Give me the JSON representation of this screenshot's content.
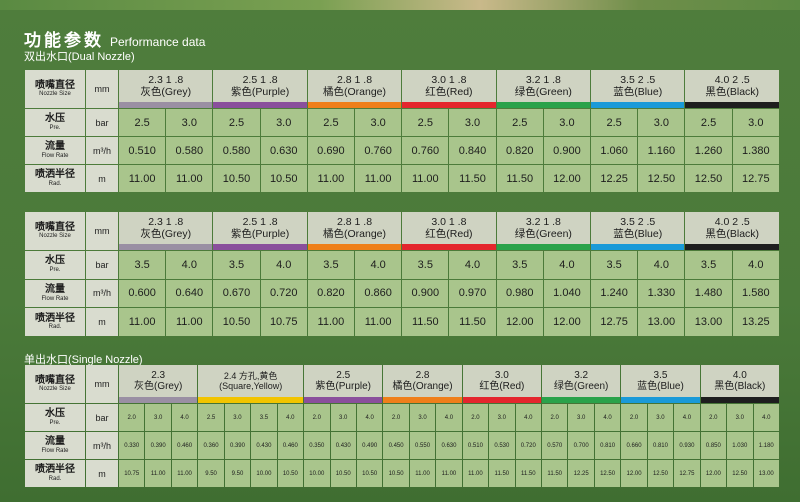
{
  "header": {
    "title_zh": "功能参数",
    "title_en": "Performance data"
  },
  "dual": {
    "label": "双出水口(Dual Nozzle)",
    "row_labels": {
      "size_zh": "喷嘴直径",
      "size_en": "Nozzle Size",
      "size_unit": "mm",
      "pressure_zh": "水压",
      "pressure_en": "Pre.",
      "pressure_unit": "bar",
      "flow_zh": "流量",
      "flow_en": "Flow Rate",
      "flow_unit": "m³/h",
      "radius_zh": "喷洒半径",
      "radius_en": "Rad.",
      "radius_unit": "m"
    },
    "tables": [
      {
        "nozzles": [
          {
            "size": "2.3 1 .8",
            "color": "灰色(Grey)",
            "hex": "#9a8fa3"
          },
          {
            "size": "2.5 1 .8",
            "color": "紫色(Purple)",
            "hex": "#8a4f9c"
          },
          {
            "size": "2.8 1 .8",
            "color": "橘色(Orange)",
            "hex": "#ef7f1a"
          },
          {
            "size": "3.0 1 .8",
            "color": "红色(Red)",
            "hex": "#e4262d"
          },
          {
            "size": "3.2 1 .8",
            "color": "绿色(Green)",
            "hex": "#2aa24a"
          },
          {
            "size": "3.5 2 .5",
            "color": "蓝色(Blue)",
            "hex": "#1a9ad8"
          },
          {
            "size": "4.0 2 .5",
            "color": "黑色(Black)",
            "hex": "#1e1e1e"
          }
        ],
        "pressure": [
          "2.5",
          "3.0",
          "2.5",
          "3.0",
          "2.5",
          "3.0",
          "2.5",
          "3.0",
          "2.5",
          "3.0",
          "2.5",
          "3.0",
          "2.5",
          "3.0"
        ],
        "flow": [
          "0.510",
          "0.580",
          "0.580",
          "0.630",
          "0.690",
          "0.760",
          "0.760",
          "0.840",
          "0.820",
          "0.900",
          "1.060",
          "1.160",
          "1.260",
          "1.380"
        ],
        "radius": [
          "11.00",
          "11.00",
          "10.50",
          "10.50",
          "11.00",
          "11.00",
          "11.00",
          "11.50",
          "11.50",
          "12.00",
          "12.25",
          "12.50",
          "12.50",
          "12.75"
        ]
      },
      {
        "nozzles": [
          {
            "size": "2.3 1 .8",
            "color": "灰色(Grey)",
            "hex": "#9a8fa3"
          },
          {
            "size": "2.5 1 .8",
            "color": "紫色(Purple)",
            "hex": "#8a4f9c"
          },
          {
            "size": "2.8 1 .8",
            "color": "橘色(Orange)",
            "hex": "#ef7f1a"
          },
          {
            "size": "3.0 1 .8",
            "color": "红色(Red)",
            "hex": "#e4262d"
          },
          {
            "size": "3.2 1 .8",
            "color": "绿色(Green)",
            "hex": "#2aa24a"
          },
          {
            "size": "3.5 2 .5",
            "color": "蓝色(Blue)",
            "hex": "#1a9ad8"
          },
          {
            "size": "4.0 2 .5",
            "color": "黑色(Black)",
            "hex": "#1e1e1e"
          }
        ],
        "pressure": [
          "3.5",
          "4.0",
          "3.5",
          "4.0",
          "3.5",
          "4.0",
          "3.5",
          "4.0",
          "3.5",
          "4.0",
          "3.5",
          "4.0",
          "3.5",
          "4.0"
        ],
        "flow": [
          "0.600",
          "0.640",
          "0.670",
          "0.720",
          "0.820",
          "0.860",
          "0.900",
          "0.970",
          "0.980",
          "1.040",
          "1.240",
          "1.330",
          "1.480",
          "1.580"
        ],
        "radius": [
          "11.00",
          "11.00",
          "10.50",
          "10.75",
          "11.00",
          "11.00",
          "11.50",
          "11.50",
          "12.00",
          "12.00",
          "12.75",
          "13.00",
          "13.00",
          "13.25"
        ]
      }
    ]
  },
  "single": {
    "label": "单出水口(Single Nozzle)",
    "nozzles": [
      {
        "size": "2.3",
        "color": "灰色(Grey)",
        "hex": "#9a8fa3"
      },
      {
        "size": "2.4 方孔,黄色",
        "color": "(Square,Yellow)",
        "hex": "#f2c400"
      },
      {
        "size": "2.5",
        "color": "紫色(Purple)",
        "hex": "#8a4f9c"
      },
      {
        "size": "2.8",
        "color": "橘色(Orange)",
        "hex": "#ef7f1a"
      },
      {
        "size": "3.0",
        "color": "红色(Red)",
        "hex": "#e4262d"
      },
      {
        "size": "3.2",
        "color": "绿色(Green)",
        "hex": "#2aa24a"
      },
      {
        "size": "3.5",
        "color": "蓝色(Blue)",
        "hex": "#1a9ad8"
      },
      {
        "size": "4.0",
        "color": "黑色(Black)",
        "hex": "#1e1e1e"
      }
    ],
    "pressure": [
      "2.0",
      "3.0",
      "4.0",
      "2.5",
      "3.0",
      "3.5",
      "4.0",
      "2.0",
      "3.0",
      "4.0",
      "2.0",
      "3.0",
      "4.0",
      "2.0",
      "3.0",
      "4.0",
      "2.0",
      "3.0",
      "4.0",
      "2.0",
      "3.0",
      "4.0",
      "2.0",
      "3.0",
      "4.0"
    ],
    "flow": [
      "0.330",
      "0.390",
      "0.460",
      "0.360",
      "0.390",
      "0.430",
      "0.460",
      "0.350",
      "0.430",
      "0.490",
      "0.450",
      "0.550",
      "0.630",
      "0.510",
      "0.530",
      "0.720",
      "0.570",
      "0.700",
      "0.810",
      "0.660",
      "0.810",
      "0.930",
      "0.850",
      "1.030",
      "1.180"
    ],
    "radius": [
      "10.75",
      "11.00",
      "11.00",
      "9.50",
      "9.50",
      "10.00",
      "10.50",
      "10.00",
      "10.50",
      "10.50",
      "10.50",
      "11.00",
      "11.00",
      "11.00",
      "11.50",
      "11.50",
      "11.50",
      "12.25",
      "12.50",
      "12.00",
      "12.50",
      "12.75",
      "12.00",
      "12.50",
      "13.00"
    ]
  }
}
